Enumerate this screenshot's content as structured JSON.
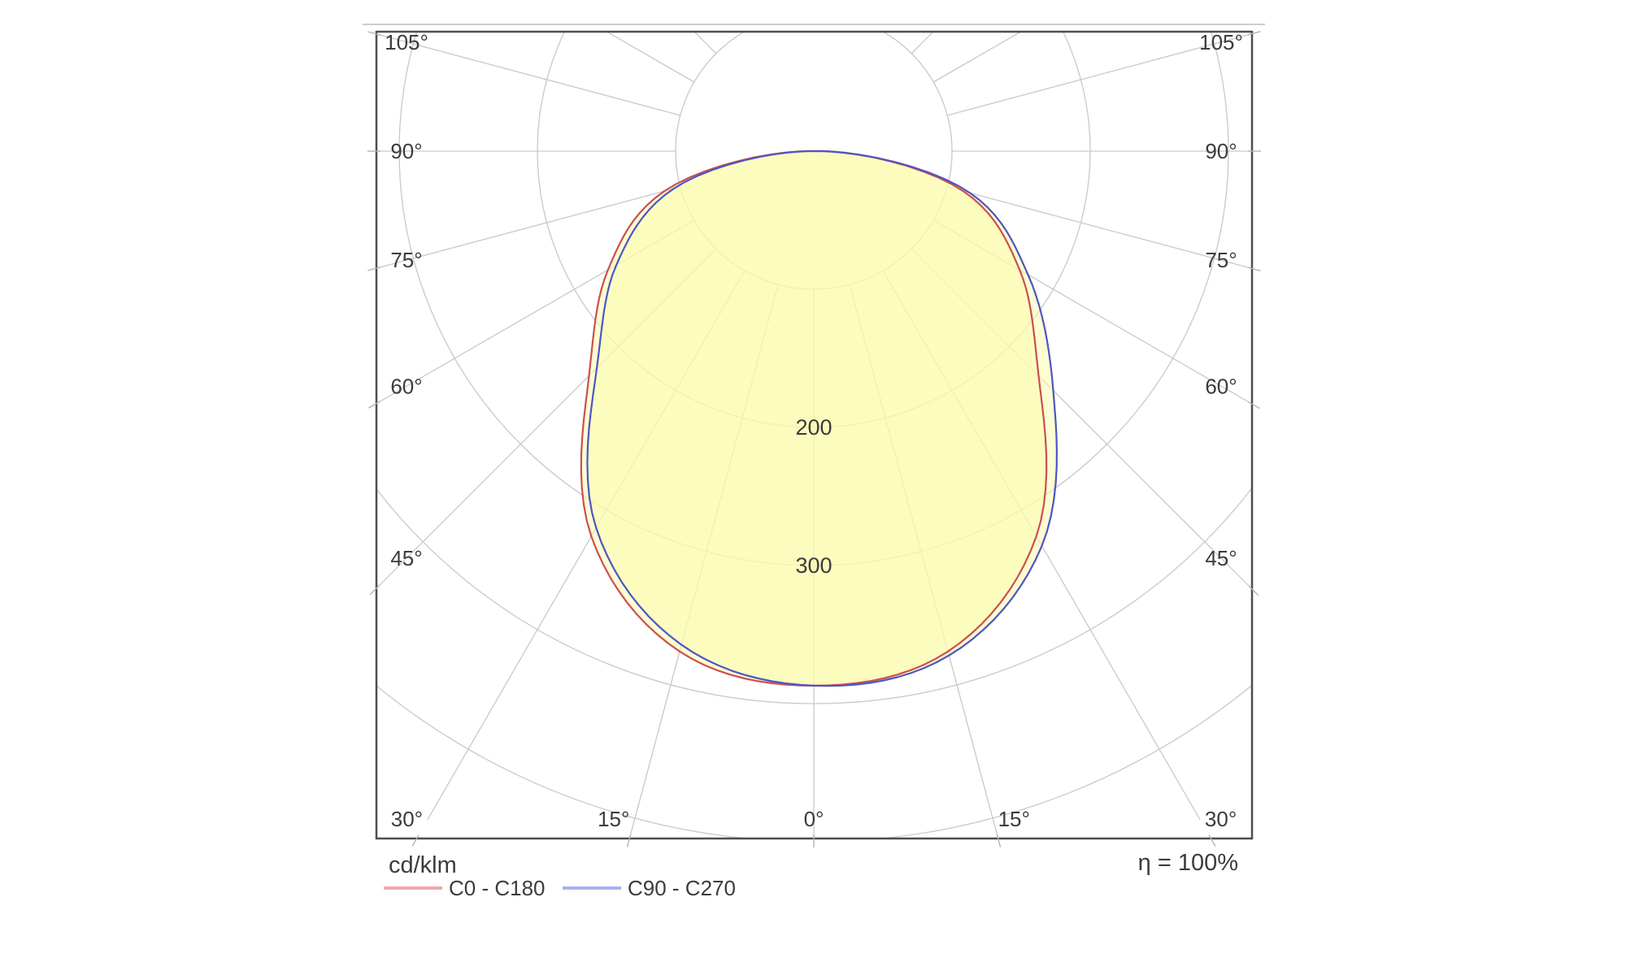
{
  "chart_data": {
    "type": "polar",
    "subtype": "luminous-intensity-distribution",
    "unit": "cd/klm",
    "efficiency": "η = 100%",
    "grid": {
      "ring_values": [
        100,
        200,
        300,
        400,
        500
      ],
      "ring_value_labels": [
        "200",
        "300"
      ],
      "ring_label_values": [
        200,
        300
      ],
      "ray_step_deg": 15,
      "side_angle_labels": [
        "45°",
        "60°",
        "75°",
        "90°",
        "105°"
      ],
      "side_angle_values": [
        45,
        60,
        75,
        90,
        105
      ],
      "bottom_angle_labels": [
        "0°",
        "15°",
        "30°"
      ],
      "bottom_angle_values": [
        0,
        15,
        30
      ],
      "grid_on": true
    },
    "series": [
      {
        "name": "C0 - C180",
        "color": "#cc4f4f",
        "legend_color": "#f0a9a9",
        "gamma_deg": [
          -90,
          -75,
          -60,
          -45,
          -30,
          -15,
          0,
          15,
          30,
          45,
          60,
          75,
          90
        ],
        "values_cd_per_klm": [
          6,
          112,
          172,
          230,
          322,
          375,
          387,
          375,
          322,
          230,
          172,
          112,
          6
        ]
      },
      {
        "name": "C90 - C270",
        "color": "#4d55c4",
        "legend_color": "#abb2ee",
        "gamma_deg": [
          -90,
          -75,
          -60,
          -45,
          -30,
          -15,
          0,
          15,
          30,
          45,
          60,
          75,
          90
        ],
        "values_cd_per_klm": [
          4,
          105,
          165,
          222,
          315,
          370,
          387,
          378,
          330,
          245,
          179,
          117,
          7
        ]
      }
    ],
    "fill_color": "rgba(251,251,170,0.52)",
    "grid_color": "#c9c9c9",
    "tick_color": "#b4b4b4",
    "border_color": "#4d4d4d",
    "text_color": "#3c3c3c",
    "top_rule_color": "#cccccc"
  }
}
